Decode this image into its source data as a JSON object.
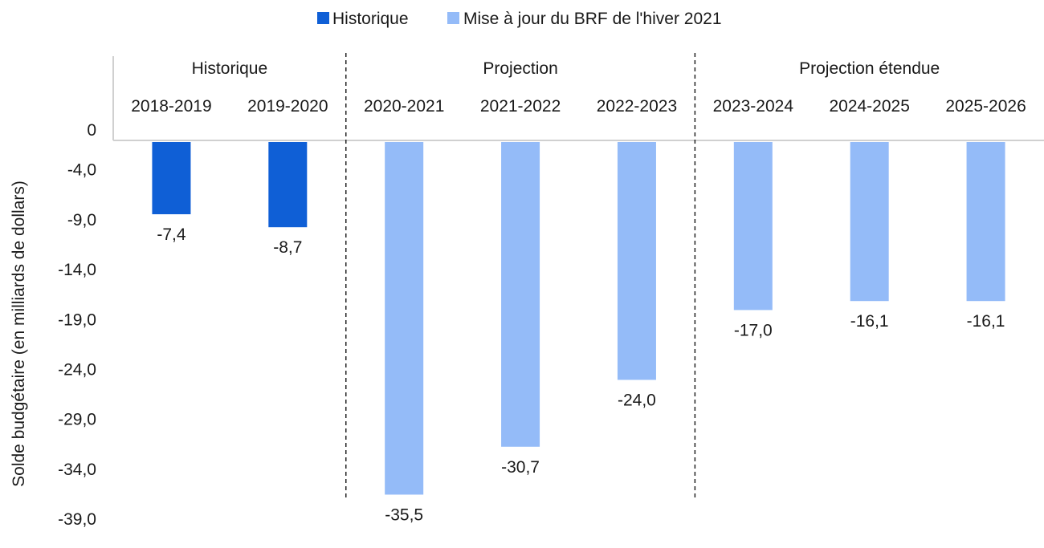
{
  "chart_data": {
    "type": "bar",
    "legend": {
      "placement": "top-center",
      "entries": [
        {
          "label": "Historique",
          "color": "#0f5fd6"
        },
        {
          "label": "Mise à jour du BRF de l'hiver 2021",
          "color": "#94bbf8"
        }
      ]
    },
    "ylabel": "Solde budgétaire (en milliards de dollars)",
    "ylim": [
      -39.0,
      0
    ],
    "yticks": [
      {
        "value": 0,
        "label": "0"
      },
      {
        "value": -4,
        "label": "-4,0"
      },
      {
        "value": -9,
        "label": "-9,0"
      },
      {
        "value": -14,
        "label": "-14,0"
      },
      {
        "value": -19,
        "label": "-19,0"
      },
      {
        "value": -24,
        "label": "-24,0"
      },
      {
        "value": -29,
        "label": "-29,0"
      },
      {
        "value": -34,
        "label": "-34,0"
      },
      {
        "value": -39,
        "label": "-39,0"
      }
    ],
    "groups": [
      {
        "label": "Historique",
        "categories": [
          "2018-2019",
          "2019-2020"
        ]
      },
      {
        "label": "Projection",
        "categories": [
          "2020-2021",
          "2021-2022",
          "2022-2023"
        ]
      },
      {
        "label": "Projection étendue",
        "categories": [
          "2023-2024",
          "2024-2025",
          "2025-2026"
        ]
      }
    ],
    "categories": [
      "2018-2019",
      "2019-2020",
      "2020-2021",
      "2021-2022",
      "2022-2023",
      "2023-2024",
      "2024-2025",
      "2025-2026"
    ],
    "series": [
      {
        "name": "Historique",
        "color": "#0f5fd6",
        "values": [
          -7.4,
          -8.7,
          null,
          null,
          null,
          null,
          null,
          null
        ]
      },
      {
        "name": "Mise à jour du BRF de l'hiver 2021",
        "color": "#94bbf8",
        "values": [
          null,
          null,
          -35.5,
          -30.7,
          -24.0,
          -17.0,
          -16.1,
          -16.1
        ]
      }
    ],
    "data_labels": [
      "-7,4",
      "-8,7",
      "-35,5",
      "-30,7",
      "-24,0",
      "-17,0",
      "-16,1",
      "-16,1"
    ],
    "grid": false
  }
}
